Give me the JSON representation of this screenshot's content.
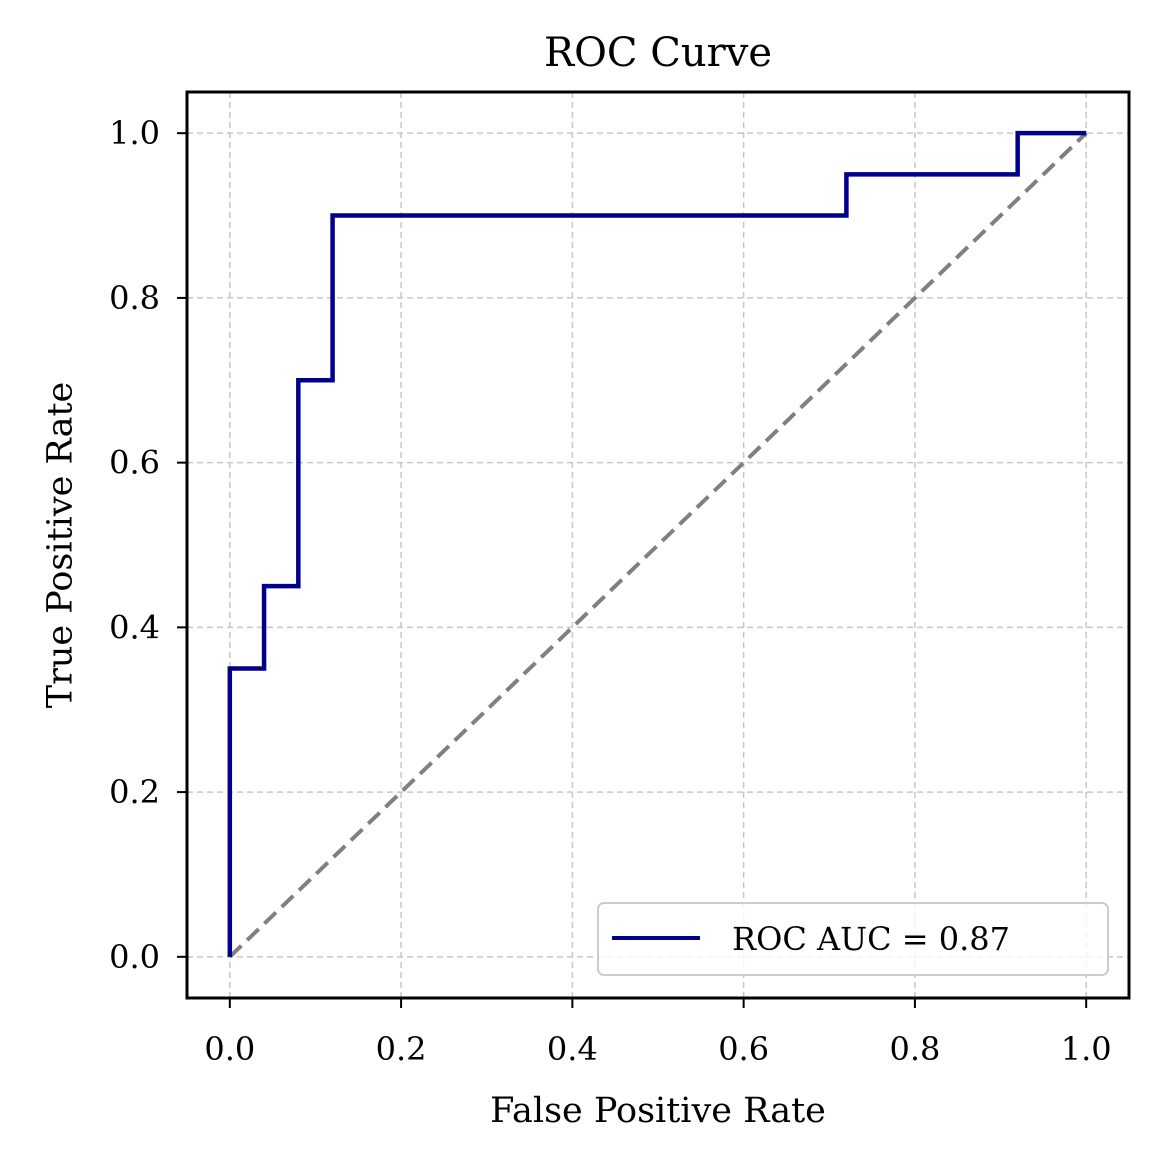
{
  "chart_data": {
    "type": "line",
    "title": "ROC Curve",
    "xlabel": "False Positive Rate",
    "ylabel": "True Positive Rate",
    "xlim": [
      -0.05,
      1.05
    ],
    "ylim": [
      -0.05,
      1.05
    ],
    "x_ticks": [
      0.0,
      0.2,
      0.4,
      0.6,
      0.8,
      1.0
    ],
    "x_tick_labels": [
      "0.0",
      "0.2",
      "0.4",
      "0.6",
      "0.8",
      "1.0"
    ],
    "y_ticks": [
      0.0,
      0.2,
      0.4,
      0.6,
      0.8,
      1.0
    ],
    "y_tick_labels": [
      "0.0",
      "0.2",
      "0.4",
      "0.6",
      "0.8",
      "1.0"
    ],
    "grid": true,
    "legend_position": "lower-right",
    "series": [
      {
        "name": "ROC AUC = 0.87",
        "color": "#00008b",
        "style": "solid",
        "x": [
          0.0,
          0.0,
          0.04,
          0.04,
          0.08,
          0.08,
          0.12,
          0.12,
          0.72,
          0.72,
          0.92,
          0.92,
          1.0
        ],
        "y": [
          0.0,
          0.35,
          0.35,
          0.45,
          0.45,
          0.7,
          0.7,
          0.9,
          0.9,
          0.95,
          0.95,
          1.0,
          1.0
        ]
      },
      {
        "color": "#808080",
        "style": "dashed",
        "x": [
          0.0,
          1.0
        ],
        "y": [
          0.0,
          1.0
        ]
      }
    ]
  }
}
